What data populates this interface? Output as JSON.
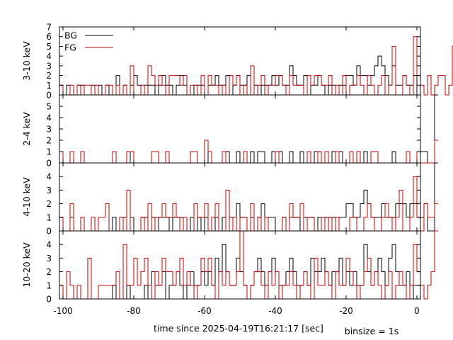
{
  "chart_data": {
    "type": "line",
    "xlabel": "time since 2025-04-19T16:21:17 [sec]",
    "note": "binsize = 1s",
    "xlim": [
      -101,
      1
    ],
    "xticks": [
      -100,
      -80,
      -60,
      -40,
      -20,
      0
    ],
    "legend_position": "top-left",
    "colors": {
      "BG": "#000000",
      "FG": "#cc0000"
    },
    "panels": [
      {
        "ylabel": "3-10 keV",
        "ylim": [
          0,
          7
        ],
        "yticks": [
          0,
          1,
          2,
          3,
          4,
          5,
          6,
          7
        ],
        "legend": [
          "BG",
          "FG"
        ],
        "series": [
          {
            "name": "BG",
            "x0": -101,
            "values": [
              1,
              0,
              1,
              0,
              0,
              1,
              1,
              0,
              0,
              1,
              0,
              1,
              0,
              1,
              0,
              0,
              2,
              0,
              1,
              0,
              1,
              2,
              1,
              0,
              1,
              1,
              1,
              0,
              1,
              2,
              1,
              1,
              0,
              1,
              2,
              1,
              0,
              0,
              1,
              1,
              1,
              0,
              1,
              1,
              2,
              1,
              1,
              2,
              0,
              1,
              2,
              1,
              1,
              2,
              0,
              1,
              0,
              1,
              1,
              1,
              2,
              1,
              2,
              1,
              1,
              3,
              2,
              1,
              1,
              2,
              0,
              1,
              1,
              2,
              1,
              0,
              1,
              1,
              0,
              1,
              1,
              2,
              2,
              1,
              3,
              2,
              2,
              1,
              2,
              3,
              4,
              3,
              2,
              1,
              3,
              1,
              1,
              2,
              1,
              1,
              2,
              0
            ]
          },
          {
            "name": "FG",
            "x0": -101,
            "values": [
              1,
              0,
              0,
              1,
              0,
              1,
              0,
              1,
              1,
              0,
              1,
              0,
              0,
              1,
              1,
              0,
              1,
              0,
              1,
              0,
              3,
              0,
              0,
              1,
              0,
              3,
              2,
              1,
              2,
              1,
              0,
              2,
              2,
              2,
              1,
              2,
              0,
              1,
              1,
              0,
              2,
              0,
              2,
              1,
              1,
              0,
              1,
              0,
              2,
              1,
              2,
              0,
              1,
              0,
              3,
              0,
              1,
              2,
              0,
              1,
              1,
              2,
              2,
              1,
              0,
              2,
              1,
              1,
              1,
              0,
              2,
              1,
              2,
              2,
              1,
              1,
              2,
              0,
              1,
              0,
              2,
              0,
              1,
              1,
              2,
              1,
              0,
              2,
              1,
              0,
              1,
              2,
              0,
              1,
              5,
              0,
              0,
              2,
              1,
              0,
              6,
              2,
              1,
              0,
              2,
              0,
              1,
              2,
              2,
              0,
              1,
              5
            ]
          }
        ]
      },
      {
        "ylabel": "2-4 keV",
        "ylim": [
          0,
          6
        ],
        "yticks": [
          0,
          1,
          2,
          3,
          4,
          5
        ],
        "series": [
          {
            "name": "BG",
            "x0": -101,
            "values": [
              0,
              0,
              0,
              0,
              0,
              0,
              0,
              0,
              0,
              0,
              0,
              0,
              0,
              0,
              0,
              0,
              0,
              0,
              0,
              1,
              0,
              0,
              0,
              0,
              0,
              0,
              0,
              0,
              0,
              0,
              0,
              0,
              0,
              0,
              0,
              0,
              0,
              0,
              0,
              0,
              0,
              0,
              1,
              0,
              0,
              0,
              0,
              1,
              0,
              0,
              1,
              0,
              0,
              0,
              1,
              0,
              1,
              1,
              0,
              0,
              1,
              0,
              1,
              0,
              0,
              1,
              0,
              0,
              1,
              0,
              0,
              0,
              1,
              0,
              0,
              1,
              0,
              1,
              0,
              1,
              0,
              0,
              1,
              0,
              0,
              0,
              1,
              0,
              0,
              0,
              0,
              0,
              0,
              0,
              1,
              0,
              0,
              0,
              0,
              0,
              0,
              0,
              1,
              1,
              0,
              0,
              6
            ]
          },
          {
            "name": "FG",
            "x0": -101,
            "values": [
              1,
              0,
              0,
              1,
              0,
              0,
              1,
              0,
              0,
              0,
              0,
              0,
              0,
              0,
              0,
              1,
              0,
              0,
              0,
              1,
              1,
              0,
              0,
              0,
              0,
              0,
              1,
              1,
              0,
              0,
              1,
              0,
              0,
              0,
              0,
              0,
              0,
              1,
              1,
              0,
              0,
              2,
              1,
              0,
              0,
              0,
              1,
              0,
              0,
              0,
              0,
              0,
              1,
              0,
              0,
              0,
              0,
              0,
              0,
              0,
              0,
              1,
              0,
              0,
              0,
              0,
              0,
              0,
              0,
              0,
              1,
              0,
              0,
              1,
              0,
              1,
              0,
              0,
              1,
              0,
              0,
              0,
              1,
              0,
              1,
              0,
              0,
              0,
              1,
              1,
              0,
              0,
              0,
              0,
              0,
              0,
              0,
              0,
              1,
              0,
              0,
              1,
              0,
              0,
              0,
              0,
              2
            ]
          }
        ]
      },
      {
        "ylabel": "4-10 keV",
        "ylim": [
          0,
          5
        ],
        "yticks": [
          0,
          1,
          2,
          3,
          4
        ],
        "series": [
          {
            "name": "BG",
            "x0": -101,
            "values": [
              1,
              0,
              0,
              1,
              0,
              0,
              0,
              0,
              0,
              0,
              0,
              0,
              0,
              0,
              0,
              1,
              0,
              0,
              1,
              0,
              1,
              0,
              0,
              1,
              1,
              0,
              1,
              0,
              1,
              1,
              1,
              0,
              1,
              1,
              1,
              0,
              0,
              1,
              0,
              1,
              0,
              1,
              0,
              0,
              1,
              0,
              1,
              0,
              1,
              0,
              2,
              1,
              1,
              0,
              1,
              0,
              1,
              2,
              0,
              1,
              1,
              0,
              0,
              1,
              0,
              1,
              1,
              1,
              0,
              1,
              1,
              1,
              0,
              1,
              0,
              1,
              1,
              1,
              0,
              1,
              1,
              2,
              2,
              1,
              1,
              2,
              3,
              2,
              1,
              1,
              1,
              2,
              1,
              1,
              1,
              2,
              2,
              2,
              1,
              2,
              2,
              1,
              1,
              2,
              0,
              0,
              5
            ]
          },
          {
            "name": "FG",
            "x0": -101,
            "values": [
              1,
              0,
              0,
              2,
              0,
              0,
              1,
              0,
              0,
              1,
              0,
              1,
              1,
              2,
              0,
              0,
              0,
              1,
              0,
              3,
              0,
              0,
              0,
              1,
              0,
              2,
              0,
              1,
              1,
              2,
              1,
              1,
              2,
              1,
              0,
              1,
              0,
              0,
              2,
              1,
              1,
              2,
              0,
              1,
              2,
              0,
              0,
              3,
              0,
              1,
              0,
              1,
              1,
              0,
              2,
              0,
              1,
              0,
              1,
              0,
              0,
              0,
              0,
              1,
              0,
              2,
              1,
              1,
              2,
              0,
              1,
              1,
              0,
              0,
              1,
              0,
              1,
              0,
              1,
              0,
              0,
              0,
              1,
              1,
              0,
              0,
              1,
              2,
              1,
              0,
              0,
              1,
              2,
              1,
              0,
              1,
              3,
              0,
              0,
              1,
              4,
              1,
              0,
              2,
              1,
              1,
              2
            ]
          }
        ]
      },
      {
        "ylabel": "10-20 keV",
        "ylim": [
          0,
          5
        ],
        "yticks": [
          0,
          1,
          2,
          3,
          4
        ],
        "series": [
          {
            "name": "BG",
            "x0": -101,
            "values": [
              0,
              0,
              0,
              0,
              0,
              0,
              0,
              0,
              0,
              0,
              0,
              0,
              0,
              0,
              0,
              1,
              0,
              0,
              0,
              1,
              0,
              0,
              0,
              0,
              1,
              0,
              2,
              1,
              1,
              2,
              0,
              1,
              1,
              2,
              1,
              0,
              1,
              2,
              1,
              1,
              2,
              1,
              2,
              1,
              3,
              2,
              4,
              2,
              1,
              1,
              3,
              2,
              1,
              0,
              1,
              2,
              3,
              2,
              1,
              2,
              3,
              2,
              1,
              1,
              2,
              3,
              2,
              1,
              1,
              2,
              1,
              3,
              2,
              2,
              3,
              2,
              1,
              2,
              2,
              3,
              1,
              2,
              1,
              2,
              1,
              1,
              4,
              2,
              1,
              2,
              3,
              2,
              1,
              3,
              4,
              2,
              1,
              1,
              2,
              0,
              1,
              1
            ]
          },
          {
            "name": "FG",
            "x0": -101,
            "values": [
              1,
              0,
              2,
              1,
              0,
              1,
              0,
              0,
              3,
              0,
              0,
              1,
              1,
              1,
              1,
              1,
              2,
              0,
              4,
              1,
              1,
              3,
              1,
              2,
              3,
              1,
              0,
              2,
              1,
              3,
              2,
              2,
              1,
              2,
              3,
              1,
              2,
              1,
              0,
              1,
              3,
              2,
              3,
              1,
              0,
              2,
              1,
              2,
              1,
              1,
              2,
              5,
              1,
              0,
              1,
              2,
              2,
              1,
              0,
              2,
              1,
              2,
              0,
              1,
              1,
              2,
              1,
              0,
              1,
              2,
              1,
              0,
              3,
              1,
              1,
              2,
              1,
              0,
              2,
              1,
              1,
              3,
              2,
              1,
              0,
              1,
              2,
              3,
              1,
              2,
              1,
              0,
              1,
              2,
              0,
              1,
              2,
              1,
              0,
              1,
              4,
              2,
              1,
              0,
              1,
              2,
              5
            ]
          }
        ]
      }
    ]
  }
}
